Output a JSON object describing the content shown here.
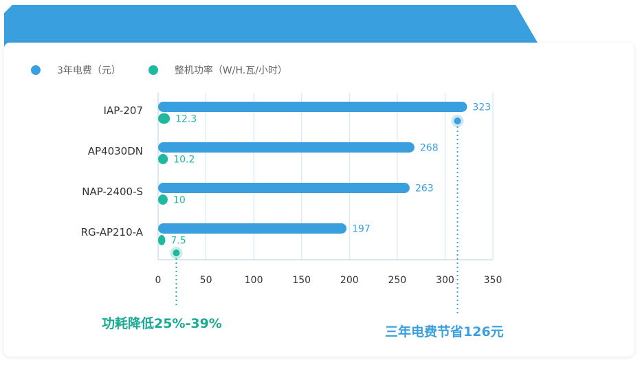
{
  "colors": {
    "cost": "#3a9fde",
    "power": "#1fb99f",
    "grid": "#cfe1ee",
    "annotation_left": "#1aaa94",
    "annotation_right": "#3a9fde"
  },
  "annotations": {
    "left": "功耗降低25%-39%",
    "right": "三年电费节省126元"
  },
  "chart_data": {
    "type": "bar",
    "orientation": "horizontal",
    "categories": [
      "IAP-207",
      "AP4030DN",
      "NAP-2400-S",
      "RG-AP210-A"
    ],
    "series": [
      {
        "name": "3年电费（元）",
        "values": [
          323,
          268,
          263,
          197
        ]
      },
      {
        "name": "整机功率（W/H.瓦/小时）",
        "values": [
          12.3,
          10.2,
          10,
          7.5
        ]
      }
    ],
    "data_labels": [
      [
        "323",
        "268",
        "263",
        "197"
      ],
      [
        "12.3",
        "10.2",
        "10",
        "7.5"
      ]
    ],
    "xlim": [
      0,
      350
    ],
    "xticks": [
      0,
      50,
      100,
      150,
      200,
      250,
      300,
      350
    ],
    "grid": true,
    "legend_position": "top-left",
    "highlight_points": [
      {
        "series": 0,
        "x": 313
      },
      {
        "series": 1,
        "x": 19
      }
    ]
  }
}
